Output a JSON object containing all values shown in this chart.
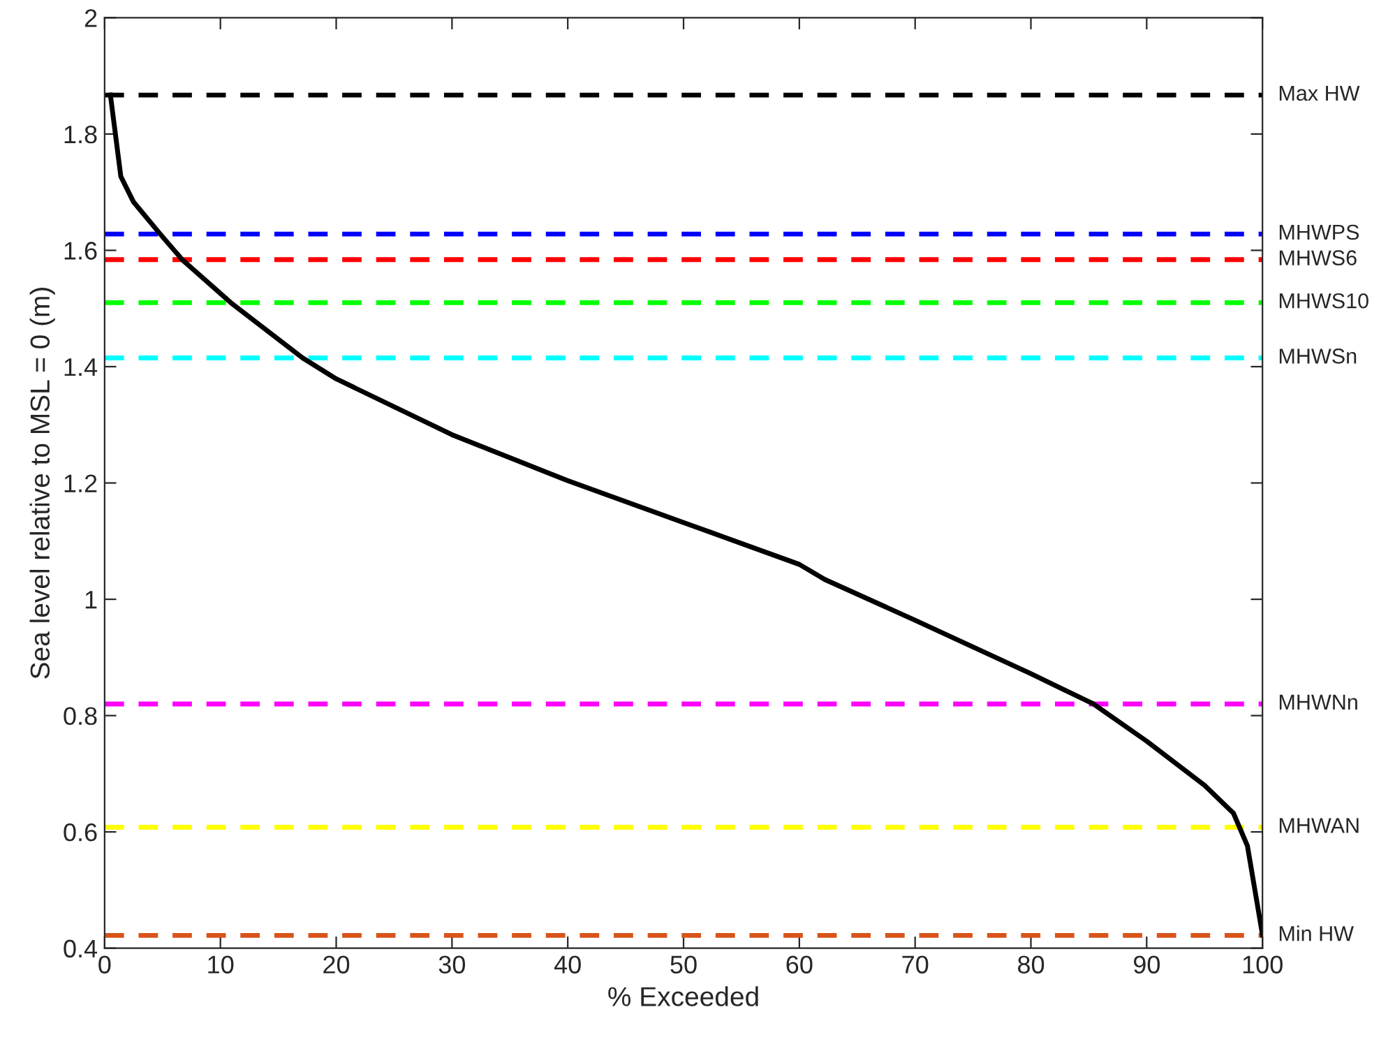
{
  "chart_data": {
    "type": "line",
    "xlabel": "% Exceeded",
    "ylabel": "Sea level relative to MSL = 0 (m)",
    "xlim": [
      0,
      100
    ],
    "ylim": [
      0.4,
      2
    ],
    "xticks": [
      0,
      10,
      20,
      30,
      40,
      50,
      60,
      70,
      80,
      90,
      100
    ],
    "yticks": [
      0.4,
      0.6,
      0.8,
      1,
      1.2,
      1.4,
      1.6,
      1.8,
      2
    ],
    "line_style": "solid",
    "marker": "none",
    "series": [
      {
        "color": "#000000",
        "x": [
          0.5,
          1.4,
          2.5,
          4.8,
          6.7,
          10.9,
          17.1,
          20,
          30,
          40,
          50,
          60,
          62.2,
          70,
          80,
          85.4,
          90,
          95,
          97.5,
          98.7,
          100
        ],
        "values": [
          1.867,
          1.727,
          1.683,
          1.628,
          1.584,
          1.51,
          1.415,
          1.379,
          1.283,
          1.204,
          1.132,
          1.06,
          1.034,
          0.964,
          0.872,
          0.82,
          0.756,
          0.68,
          0.632,
          0.576,
          0.423
        ]
      }
    ],
    "ref_lines": [
      {
        "axis": "y",
        "value": 1.867,
        "label": "Max HW",
        "color": "#000000",
        "line_style": "dashed"
      },
      {
        "axis": "y",
        "value": 1.628,
        "label": "MHWPS",
        "color": "#0000ff",
        "line_style": "dashed"
      },
      {
        "axis": "y",
        "value": 1.584,
        "label": "MHWS6",
        "color": "#ff0000",
        "line_style": "dashed"
      },
      {
        "axis": "y",
        "value": 1.51,
        "label": "MHWS10",
        "color": "#00ff00",
        "line_style": "dashed"
      },
      {
        "axis": "y",
        "value": 1.415,
        "label": "MHWSn",
        "color": "#00ffff",
        "line_style": "dashed"
      },
      {
        "axis": "y",
        "value": 0.82,
        "label": "MHWNn",
        "color": "#ff00ff",
        "line_style": "dashed"
      },
      {
        "axis": "y",
        "value": 0.608,
        "label": "MHWAN",
        "color": "#ffff00",
        "line_style": "dashed"
      },
      {
        "axis": "y",
        "value": 0.422,
        "label": "Min HW",
        "color": "#d95319",
        "line_style": "dashed"
      }
    ]
  }
}
